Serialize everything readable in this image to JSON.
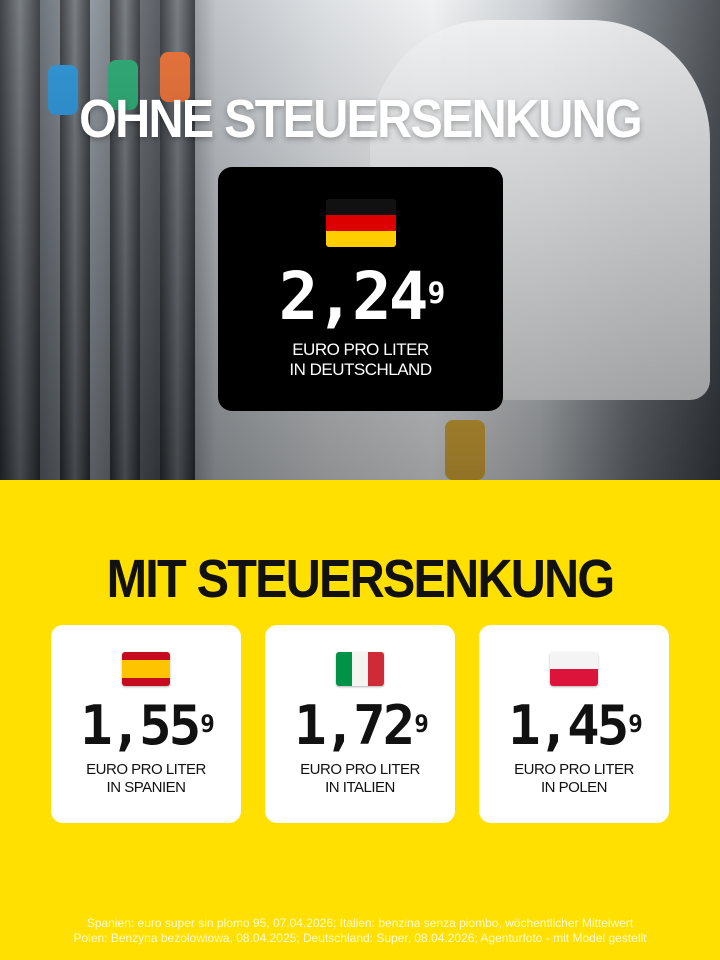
{
  "header": {
    "title": "OHNE STEUERSENKUNG"
  },
  "germany": {
    "icon": "flag-germany-icon",
    "price_main": "2,24",
    "price_sup": "9",
    "line1": "EURO PRO LITER",
    "line2": "IN DEUTSCHLAND"
  },
  "section": {
    "title": "MIT STEUERSENKUNG"
  },
  "countries": [
    {
      "icon": "flag-spain-icon",
      "price_main": "1,55",
      "price_sup": "9",
      "line1": "EURO PRO LITER",
      "line2": "IN SPANIEN"
    },
    {
      "icon": "flag-italy-icon",
      "price_main": "1,72",
      "price_sup": "9",
      "line1": "EURO PRO LITER",
      "line2": "IN ITALIEN"
    },
    {
      "icon": "flag-poland-icon",
      "price_main": "1,45",
      "price_sup": "9",
      "line1": "EURO PRO LITER",
      "line2": "IN POLEN"
    }
  ],
  "footer": {
    "line1": "Spanien: euro super sin plomo 95, 07.04.2026; Italien: benzina senza piombo, wöchentlicher Mittelwert",
    "line2": "Polen: Benzyna bezolowiowa, 08.04.2025; Deutschland: Super, 08.04.2026; Agenturfoto - mit Model gestellt"
  },
  "colors": {
    "background": "#FFE000",
    "card_dark": "#000000",
    "card_light": "#FFFFFF"
  }
}
